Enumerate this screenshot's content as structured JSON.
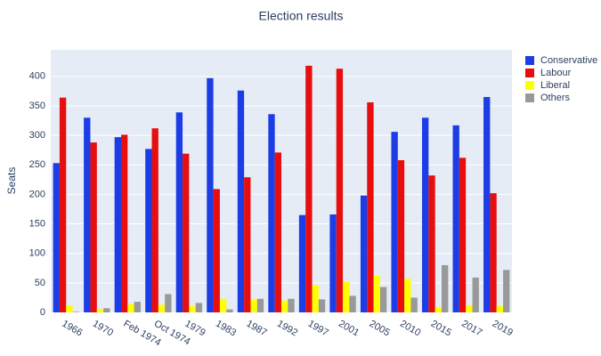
{
  "chart_data": {
    "type": "bar",
    "title": "Election results",
    "y_label": "Seats",
    "categories": [
      "1966",
      "1970",
      "Feb 1974",
      "Oct 1974",
      "1979",
      "1983",
      "1987",
      "1992",
      "1997",
      "2001",
      "2005",
      "2010",
      "2015",
      "2017",
      "2019"
    ],
    "series": [
      {
        "name": "Conservative",
        "color": "#1c3de6",
        "values": [
          253,
          330,
          297,
          277,
          339,
          397,
          376,
          336,
          165,
          166,
          198,
          306,
          330,
          317,
          365
        ]
      },
      {
        "name": "Labour",
        "color": "#e60e0e",
        "values": [
          364,
          288,
          301,
          312,
          269,
          209,
          229,
          271,
          418,
          413,
          356,
          258,
          232,
          262,
          202
        ]
      },
      {
        "name": "Liberal",
        "color": "#ffff00",
        "values": [
          12,
          6,
          14,
          13,
          11,
          23,
          22,
          20,
          46,
          52,
          62,
          57,
          8,
          12,
          11
        ]
      },
      {
        "name": "Others",
        "color": "#999999",
        "values": [
          1,
          7,
          18,
          31,
          16,
          5,
          23,
          23,
          22,
          28,
          43,
          25,
          80,
          59,
          72
        ]
      }
    ],
    "ylim": [
      0,
      445
    ],
    "yticks": [
      0,
      50,
      100,
      150,
      200,
      250,
      300,
      350,
      400
    ],
    "grid": true,
    "legend": "right"
  }
}
